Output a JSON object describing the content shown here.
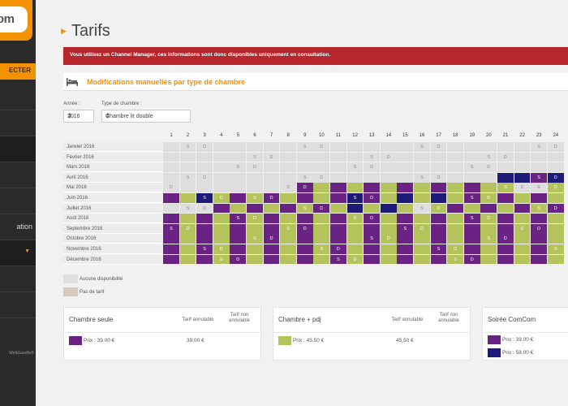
{
  "sidebar": {
    "logo_text": "om",
    "connect_label": "ECTER",
    "item_partial": "ation",
    "footer_partial": "WebGazelle®"
  },
  "page": {
    "title": "Tarifs",
    "alert": "Vous utilisez un Channel Manager, ces informations sont donc disponibles uniquement en consultation."
  },
  "section": {
    "title": "Modifications manuelles par type de chambre"
  },
  "filters": {
    "year_label": "Année :",
    "year_value": "2016",
    "room_label": "Type de chambre :",
    "room_value": "Chambre lit double"
  },
  "calendar": {
    "days": [
      "1",
      "2",
      "3",
      "4",
      "5",
      "6",
      "7",
      "8",
      "9",
      "10",
      "11",
      "12",
      "13",
      "14",
      "15",
      "16",
      "17",
      "18",
      "19",
      "20",
      "21",
      "22",
      "23",
      "24"
    ],
    "months": [
      "Janvier 2016",
      "Février 2016",
      "Mars 2016",
      "Avril 2016",
      "Mai 2016",
      "Juin 2016",
      "Juillet 2016",
      "Août 2016",
      "Septembre 2016",
      "Octobre 2016",
      "Novembre 2016",
      "Décembre 2016"
    ],
    "grid": [
      [
        "g",
        "gS",
        "gD",
        "g",
        "g",
        "g",
        "g",
        "g",
        "gS",
        "gD",
        "g",
        "g",
        "g",
        "g",
        "g",
        "gS",
        "gD",
        "g",
        "g",
        "g",
        "g",
        "g",
        "gS",
        "gD"
      ],
      [
        "g",
        "g",
        "g",
        "g",
        "g",
        "gS",
        "gD",
        "g",
        "g",
        "g",
        "g",
        "g",
        "gS",
        "gD",
        "g",
        "g",
        "g",
        "g",
        "g",
        "gS",
        "gD",
        "g",
        "g",
        "g"
      ],
      [
        "g",
        "g",
        "g",
        "g",
        "gS",
        "gD",
        "g",
        "g",
        "g",
        "g",
        "g",
        "gS",
        "gD",
        "g",
        "g",
        "g",
        "g",
        "g",
        "gS",
        "gD",
        "g",
        "g",
        "g",
        "g"
      ],
      [
        "g",
        "gS",
        "gD",
        "g",
        "g",
        "g",
        "g",
        "g",
        "gS",
        "gD",
        "g",
        "g",
        "g",
        "g",
        "g",
        "gS",
        "gD",
        "g",
        "g",
        "g",
        "n",
        "n",
        "pS",
        "nD"
      ],
      [
        "gD",
        "g",
        "g",
        "g",
        "g",
        "g",
        "g",
        "gS",
        "pD",
        "v",
        "p",
        "v",
        "p",
        "v",
        "p",
        "v",
        "p",
        "v",
        "p",
        "v",
        "vS",
        "gD",
        "gS",
        "vD"
      ],
      [
        "p",
        "v",
        "nS",
        "vD",
        "p",
        "vS",
        "pD",
        "v",
        "p",
        "v",
        "p",
        "nS",
        "pD",
        "v",
        "n",
        "v",
        "n",
        "v",
        "pS",
        "vD",
        "p",
        "v",
        "p",
        "v"
      ],
      [
        "g",
        "gS",
        "gD",
        "p",
        "v",
        "p",
        "v",
        "p",
        "vS",
        "pD",
        "v",
        "n",
        "v",
        "n",
        "v",
        "gS",
        "vD",
        "p",
        "v",
        "p",
        "v",
        "p",
        "vS",
        "pD"
      ],
      [
        "p",
        "v",
        "p",
        "v",
        "pS",
        "vD",
        "p",
        "v",
        "p",
        "v",
        "p",
        "vS",
        "pD",
        "v",
        "p",
        "v",
        "p",
        "v",
        "pS",
        "vD",
        "p",
        "v",
        "p",
        "v"
      ],
      [
        "pS",
        "vD",
        "p",
        "v",
        "p",
        "v",
        "p",
        "vS",
        "pD",
        "v",
        "p",
        "v",
        "p",
        "v",
        "pS",
        "vD",
        "p",
        "v",
        "p",
        "v",
        "p",
        "vS",
        "pD",
        "v"
      ],
      [
        "p",
        "v",
        "p",
        "v",
        "p",
        "vS",
        "pD",
        "v",
        "p",
        "v",
        "p",
        "v",
        "pS",
        "vD",
        "p",
        "v",
        "p",
        "v",
        "p",
        "vS",
        "pD",
        "v",
        "p",
        "v"
      ],
      [
        "p",
        "v",
        "pS",
        "vD",
        "p",
        "v",
        "p",
        "v",
        "p",
        "vS",
        "pD",
        "v",
        "p",
        "v",
        "p",
        "v",
        "pS",
        "vD",
        "p",
        "v",
        "p",
        "v",
        "p",
        "vS"
      ],
      [
        "p",
        "v",
        "p",
        "vS",
        "pD",
        "v",
        "p",
        "v",
        "p",
        "v",
        "pS",
        "vD",
        "p",
        "v",
        "p",
        "v",
        "p",
        "vS",
        "pD",
        "v",
        "p",
        "v",
        "p",
        "v"
      ]
    ],
    "sat_label": "S",
    "sun_label": "D"
  },
  "colors": {
    "purple": "#6a2383",
    "green": "#b4c35c",
    "navy": "#1e1a78",
    "grey": "#dedede",
    "beige": "#d6cac0",
    "accent": "#f39200",
    "alert": "#b6262b"
  },
  "legend": [
    {
      "label": "Aucune disponibilité",
      "color": "#dedede"
    },
    {
      "label": "Pas de tarif",
      "color": "#d6cac0"
    }
  ],
  "cards": [
    {
      "title": "Chambre seule",
      "col1": "Tarif annulable",
      "col2": "Tarif non annulable",
      "price": "Prix : 39.00 €",
      "val1": "39,00 €",
      "color": "#6a2383"
    },
    {
      "title": "Chambre + pdj",
      "col1": "Tarif annulable",
      "col2": "Tarif non annulable",
      "price": "Prix : 45.50 €",
      "val1": "45,50 €",
      "color": "#b4c35c"
    },
    {
      "title": "Soirée ComCom",
      "prices": [
        {
          "label": "Prix : 39.00 €",
          "color": "#6a2383"
        },
        {
          "label": "Prix : 58.00 €",
          "color": "#1e1a78"
        }
      ]
    }
  ]
}
